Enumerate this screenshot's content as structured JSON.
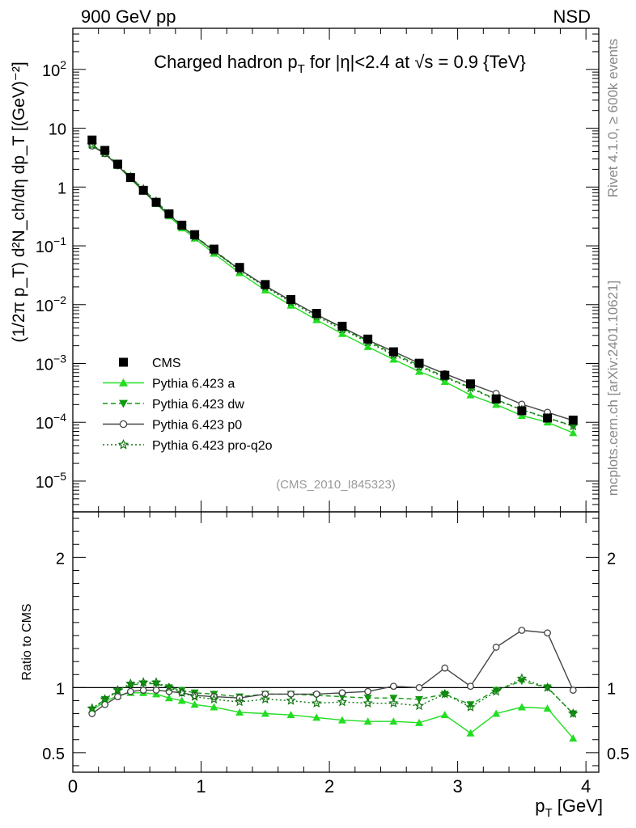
{
  "header": {
    "left": "900 GeV pp",
    "right": "NSD",
    "title_main": "Charged hadron p",
    "title_sub": "T",
    "title_rest": " for |η|<2.4 at √s = 0.9 {TeV}",
    "analysis_id": "(CMS_2010_I845323)",
    "side_rivet": "Rivet 4.1.0, ≥ 600k events",
    "side_mcplots": "mcplots.cern.ch [arXiv:2401.10621]"
  },
  "chart_data": {
    "type": "line",
    "x": [
      0.15,
      0.25,
      0.35,
      0.45,
      0.55,
      0.65,
      0.75,
      0.85,
      0.95,
      1.1,
      1.3,
      1.5,
      1.7,
      1.9,
      2.1,
      2.3,
      2.5,
      2.7,
      2.9,
      3.1,
      3.3,
      3.5,
      3.7,
      3.9
    ],
    "xlim": [
      0,
      4.1
    ],
    "xlabel": "p_T [GeV]",
    "xticks": [
      0,
      1,
      2,
      3,
      4
    ],
    "main_ylabel": "(1/2π p_T) d²N_ch/dη dp_T [(GeV)⁻²]",
    "main_ylim_log": [
      3e-06,
      500
    ],
    "main_yticks": [
      {
        "v": 100,
        "m": "10",
        "e": "2"
      },
      {
        "v": 10,
        "m": "10",
        "e": ""
      },
      {
        "v": 1,
        "m": "1",
        "e": ""
      },
      {
        "v": 0.1,
        "m": "10",
        "e": "−1"
      },
      {
        "v": 0.01,
        "m": "10",
        "e": "−2"
      },
      {
        "v": 0.001,
        "m": "10",
        "e": "−3"
      },
      {
        "v": 0.0001,
        "m": "10",
        "e": "−4"
      },
      {
        "v": 1e-05,
        "m": "10",
        "e": "−5"
      }
    ],
    "ratio_ylabel": "Ratio to CMS",
    "ratio_ylim": [
      0.35,
      2.35
    ],
    "ratio_yticks": [
      0.5,
      1,
      2
    ],
    "ratio_ytick_labels": [
      "0.5",
      "1",
      "2"
    ],
    "series": [
      {
        "name": "CMS",
        "color": "#000000",
        "marker": "square",
        "line": "none",
        "values": [
          6.3,
          4.2,
          2.45,
          1.45,
          0.88,
          0.55,
          0.35,
          0.225,
          0.155,
          0.088,
          0.043,
          0.022,
          0.0122,
          0.0071,
          0.0043,
          0.0026,
          0.00158,
          0.00101,
          0.00063,
          0.00045,
          0.00025,
          0.000157,
          0.000118,
          0.000109
        ],
        "ratio": [
          1,
          1,
          1,
          1,
          1,
          1,
          1,
          1,
          1,
          1,
          1,
          1,
          1,
          1,
          1,
          1,
          1,
          1,
          1,
          1,
          1,
          1,
          1,
          1
        ]
      },
      {
        "name": "Pythia 6.423 a",
        "color": "#22dd22",
        "marker": "triangle-up",
        "line": "solid",
        "values": [
          5.2,
          3.7,
          2.3,
          1.38,
          0.85,
          0.52,
          0.32,
          0.2,
          0.134,
          0.074,
          0.0346,
          0.0176,
          0.0097,
          0.0055,
          0.0032,
          0.00192,
          0.00117,
          0.00073,
          0.00049,
          0.00029,
          0.0002,
          0.00013,
          0.0001,
          6.6e-05
        ],
        "ratio": [
          0.83,
          0.89,
          0.94,
          0.96,
          0.96,
          0.95,
          0.92,
          0.9,
          0.87,
          0.85,
          0.81,
          0.8,
          0.79,
          0.77,
          0.75,
          0.74,
          0.74,
          0.73,
          0.79,
          0.65,
          0.8,
          0.85,
          0.84,
          0.61
        ]
      },
      {
        "name": "Pythia 6.423 dw",
        "color": "#119911",
        "marker": "triangle-down",
        "line": "dashed",
        "values": [
          5.2,
          3.8,
          2.4,
          1.47,
          0.91,
          0.57,
          0.35,
          0.22,
          0.148,
          0.084,
          0.0398,
          0.0209,
          0.0116,
          0.0067,
          0.004,
          0.0024,
          0.00146,
          0.00093,
          0.0006,
          0.00039,
          0.000244,
          0.000164,
          0.000119,
          8.7e-05
        ],
        "ratio": [
          0.83,
          0.91,
          0.97,
          1.02,
          1.03,
          1.03,
          1.0,
          0.98,
          0.96,
          0.95,
          0.93,
          0.95,
          0.95,
          0.94,
          0.93,
          0.92,
          0.92,
          0.91,
          0.95,
          0.87,
          0.98,
          1.05,
          1.0,
          0.8
        ]
      },
      {
        "name": "Pythia 6.423 p0",
        "color": "#444444",
        "marker": "circle-open",
        "line": "solid",
        "values": [
          5.0,
          3.7,
          2.3,
          1.42,
          0.86,
          0.53,
          0.34,
          0.215,
          0.145,
          0.082,
          0.0396,
          0.0209,
          0.0117,
          0.0068,
          0.0041,
          0.0025,
          0.0016,
          0.00101,
          0.00067,
          0.00045,
          0.00031,
          0.000203,
          0.000148,
          0.000107
        ],
        "ratio": [
          0.8,
          0.87,
          0.93,
          0.97,
          0.98,
          0.98,
          0.97,
          0.96,
          0.94,
          0.93,
          0.92,
          0.95,
          0.95,
          0.95,
          0.96,
          0.97,
          1.01,
          1.0,
          1.15,
          1.01,
          1.31,
          1.44,
          1.42,
          0.98
        ]
      },
      {
        "name": "Pythia 6.423 pro-q2o",
        "color": "#117711",
        "marker": "star-open",
        "line": "dotted",
        "values": [
          5.2,
          3.8,
          2.4,
          1.49,
          0.92,
          0.57,
          0.35,
          0.215,
          0.143,
          0.081,
          0.0383,
          0.02,
          0.011,
          0.0063,
          0.0038,
          0.0023,
          0.0014,
          0.00088,
          0.00058,
          0.00038,
          0.000238,
          0.000163,
          0.000117,
          8.6e-05
        ],
        "ratio": [
          0.84,
          0.91,
          0.98,
          1.03,
          1.04,
          1.04,
          1.0,
          0.96,
          0.93,
          0.91,
          0.89,
          0.91,
          0.9,
          0.88,
          0.89,
          0.88,
          0.88,
          0.86,
          0.95,
          0.85,
          0.97,
          1.07,
          1.0,
          0.8
        ]
      }
    ]
  }
}
